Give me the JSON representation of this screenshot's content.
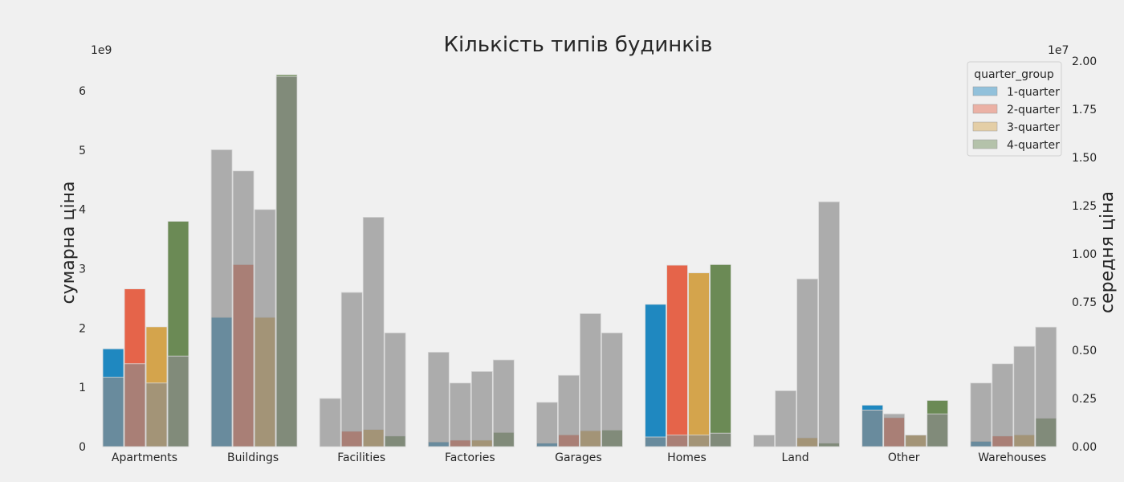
{
  "chart_data": {
    "type": "bar",
    "title": "Кількість типів будинків",
    "categories": [
      "Apartments",
      "Buildings",
      "Facilities",
      "Factories",
      "Garages",
      "Homes",
      "Land",
      "Other",
      "Warehouses"
    ],
    "ylabel_left": "сумарна ціна",
    "ylabel_right": "середня ціна",
    "left_multiplier": "1e9",
    "right_multiplier": "1e7",
    "ylim_left": [
      0,
      6.6
    ],
    "ylim_right": [
      0,
      2.0
    ],
    "yticks_left": [
      "0",
      "1",
      "2",
      "3",
      "4",
      "5",
      "6"
    ],
    "yticks_right": [
      "0.00",
      "0.25",
      "0.50",
      "0.75",
      "1.00",
      "1.25",
      "1.50",
      "1.75",
      "2.00"
    ],
    "grid": false,
    "legend": {
      "title": "quarter_group",
      "placement": "top-right",
      "entries": [
        "1-quarter",
        "2-quarter",
        "3-quarter",
        "4-quarter"
      ]
    },
    "series": [
      {
        "name": "1-quarter",
        "color": "#1f88c0",
        "sum": [
          1.65,
          2.18,
          0.0,
          0.08,
          0.06,
          2.4,
          0.0,
          0.7,
          0.09
        ],
        "mean": [
          0.36,
          1.54,
          0.25,
          0.49,
          0.23,
          0.05,
          0.06,
          0.19,
          0.33
        ]
      },
      {
        "name": "2-quarter",
        "color": "#e5644a",
        "sum": [
          2.66,
          3.07,
          0.26,
          0.11,
          0.2,
          3.06,
          0.0,
          0.49,
          0.18
        ],
        "mean": [
          0.43,
          1.43,
          0.8,
          0.33,
          0.37,
          0.06,
          0.29,
          0.17,
          0.43
        ]
      },
      {
        "name": "3-quarter",
        "color": "#d4a44c",
        "sum": [
          2.02,
          2.18,
          0.29,
          0.11,
          0.27,
          2.93,
          0.15,
          0.2,
          0.2
        ],
        "mean": [
          0.33,
          1.23,
          1.19,
          0.39,
          0.69,
          0.06,
          0.87,
          0.06,
          0.52
        ]
      },
      {
        "name": "4-quarter",
        "color": "#6b8a55",
        "sum": [
          3.8,
          6.27,
          0.18,
          0.24,
          0.28,
          3.07,
          0.06,
          0.78,
          0.48
        ],
        "mean": [
          0.47,
          1.92,
          0.59,
          0.45,
          0.59,
          0.07,
          1.27,
          0.17,
          0.62
        ]
      }
    ]
  }
}
